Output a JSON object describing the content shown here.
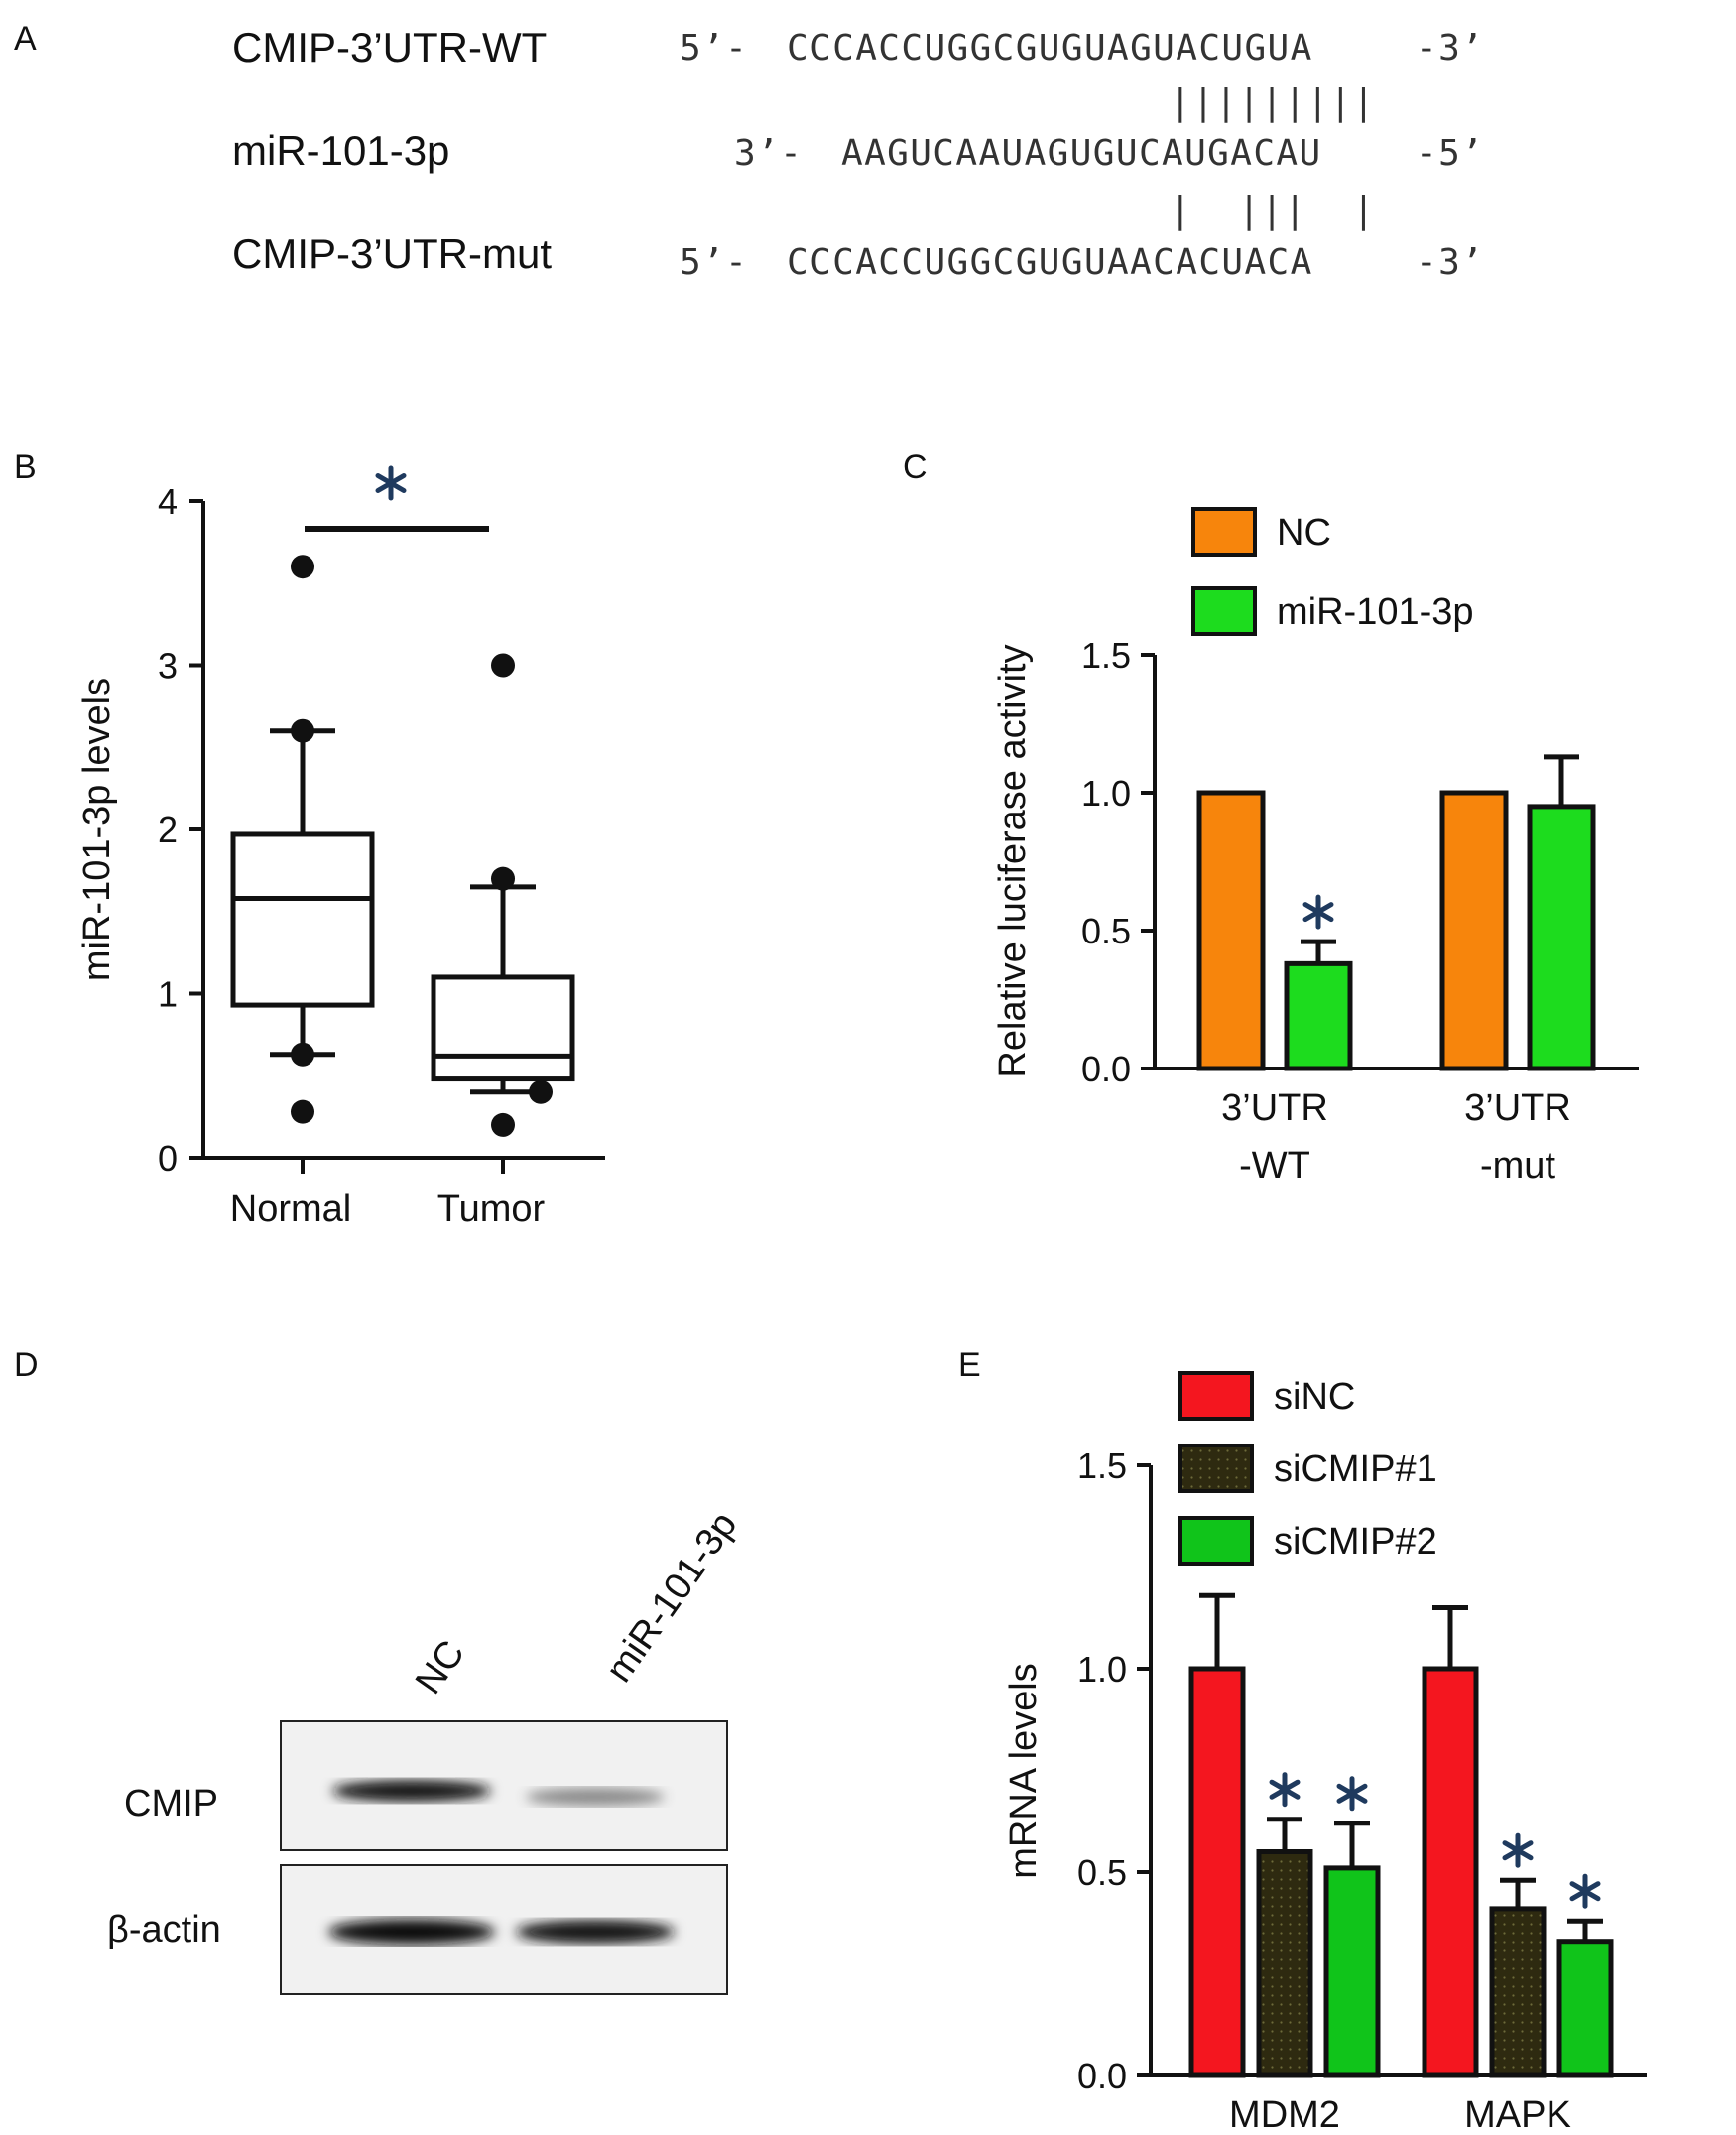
{
  "colors": {
    "nc_orange": "#F7850C",
    "mir_green": "#1DDC1E",
    "sinc_red": "#F4161F",
    "sicmip1_dark": "#2E2A10",
    "sicmip2_green": "#10C41A",
    "star_blue": "#1F3A5E",
    "star_orange": "#C97F2A"
  },
  "panels": {
    "a": "A",
    "b": "B",
    "c": "C",
    "d": "D",
    "e": "E"
  },
  "sequence_panel": {
    "rows": [
      {
        "label": "CMIP-3’UTR-WT",
        "prefix": "5’-",
        "sequence": "CCCACCUGGCGUGUAGUACUGUA",
        "suffix": "-3’"
      },
      {
        "label": "miR-101-3p",
        "prefix": "3’-",
        "sequence": "AAGUCAAUAGUGUCAUGACAU",
        "suffix": "-5’"
      },
      {
        "label": "CMIP-3’UTR-mut",
        "prefix": "5’-",
        "sequence": "CCCACCUGGCGUGUAACACUACA",
        "suffix": "-3’"
      }
    ],
    "pairing_top": "|||||||||",
    "pairing_bottom": "|  |||  |"
  },
  "chart_data": [
    {
      "panel": "B",
      "type": "box",
      "categories": [
        "Normal",
        "Tumor"
      ],
      "ylabel": "miR-101-3p levels",
      "xlabel": "",
      "ylim": [
        0,
        4
      ],
      "yticks": [
        "0",
        "1",
        "2",
        "3",
        "4"
      ],
      "boxes": [
        {
          "category": "Normal",
          "q1": 0.93,
          "median": 1.58,
          "q3": 1.97,
          "whisker_low": 0.63,
          "whisker_high": 2.6,
          "outliers": [
            3.6,
            2.6,
            0.63,
            0.28
          ]
        },
        {
          "category": "Tumor",
          "q1": 0.48,
          "median": 0.62,
          "q3": 1.1,
          "whisker_low": 0.4,
          "whisker_high": 1.65,
          "outliers": [
            3.0,
            1.7,
            0.4,
            0.2
          ]
        }
      ],
      "significance": "*"
    },
    {
      "panel": "C",
      "type": "bar",
      "categories": [
        "3’UTR\n-WT",
        "3’UTR\n-mut"
      ],
      "series": [
        {
          "name": "NC",
          "values": [
            1.0,
            1.0
          ],
          "errors": [
            0,
            0
          ]
        },
        {
          "name": "miR-101-3p",
          "values": [
            0.38,
            0.95
          ],
          "errors": [
            0.08,
            0.18
          ]
        }
      ],
      "ylabel": "Relative luciferase activity",
      "xlabel": "",
      "ylim": [
        0,
        1.5
      ],
      "yticks": [
        "0.0",
        "0.5",
        "1.0",
        "1.5"
      ],
      "significance": [
        {
          "category": 0,
          "series": 1,
          "mark": "*"
        }
      ],
      "legend": "top-left"
    },
    {
      "panel": "E",
      "type": "bar",
      "categories": [
        "MDM2",
        "MAPK"
      ],
      "series": [
        {
          "name": "siNC",
          "values": [
            1.0,
            1.0
          ],
          "errors": [
            0.18,
            0.15
          ]
        },
        {
          "name": "siCMIP#1",
          "values": [
            0.55,
            0.41
          ],
          "errors": [
            0.08,
            0.07
          ]
        },
        {
          "name": "siCMIP#2",
          "values": [
            0.51,
            0.33
          ],
          "errors": [
            0.11,
            0.05
          ]
        }
      ],
      "ylabel": "mRNA levels",
      "xlabel": "",
      "ylim": [
        0,
        1.5
      ],
      "yticks": [
        "0.0",
        "0.5",
        "1.0",
        "1.5"
      ],
      "significance": [
        {
          "category": 0,
          "series": 1,
          "mark": "*"
        },
        {
          "category": 0,
          "series": 2,
          "mark": "*"
        },
        {
          "category": 1,
          "series": 1,
          "mark": "*"
        },
        {
          "category": 1,
          "series": 2,
          "mark": "*"
        }
      ],
      "legend": "top-left"
    }
  ],
  "western_blot": {
    "lanes": [
      "NC",
      "miR-101-3p"
    ],
    "rows": [
      {
        "label": "CMIP",
        "band_intensity": [
          1.0,
          0.35
        ]
      },
      {
        "label": "β-actin",
        "band_intensity": [
          1.0,
          0.95
        ]
      }
    ]
  }
}
